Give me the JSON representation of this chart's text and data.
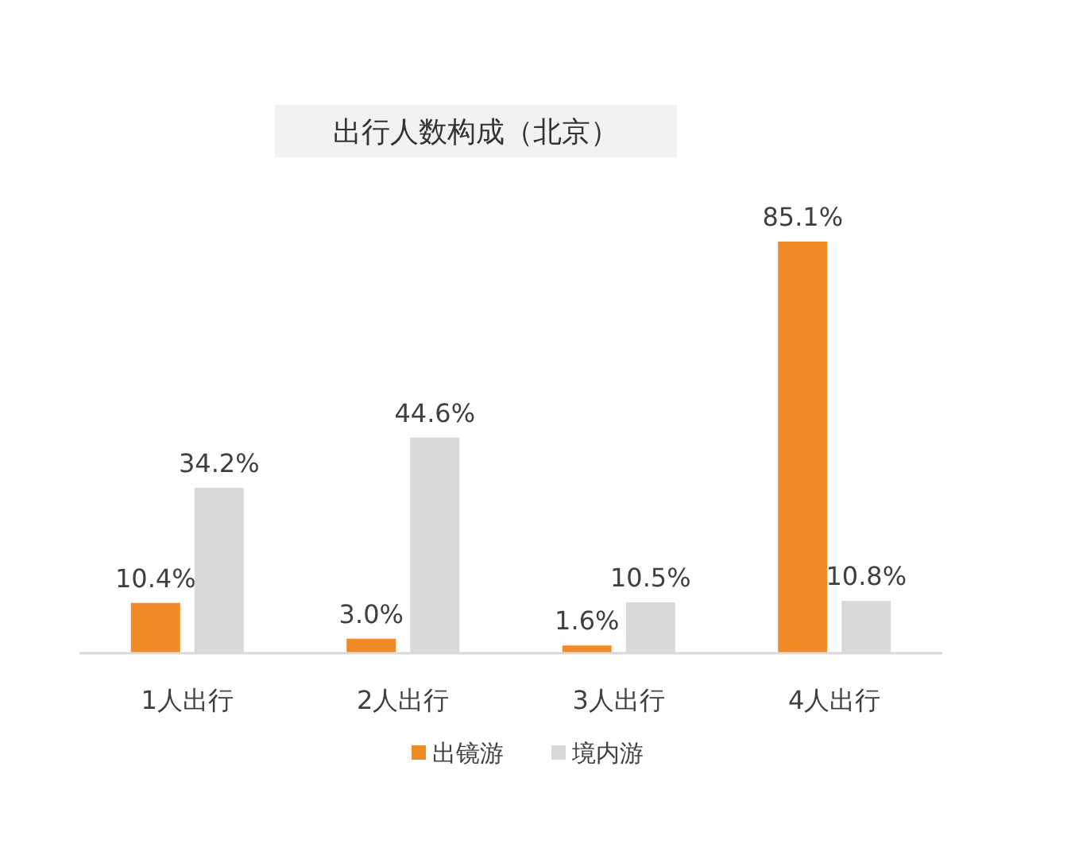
{
  "chart_data": {
    "type": "bar",
    "title": "出行人数构成（北京）",
    "categories": [
      "1人出行",
      "2人出行",
      "3人出行",
      "4人出行"
    ],
    "series": [
      {
        "name": "出镜游",
        "color": "#f08a24",
        "values": [
          10.4,
          3.0,
          1.6,
          85.1
        ],
        "value_labels": [
          "10.4%",
          "3.0%",
          "1.6%",
          "85.1%"
        ]
      },
      {
        "name": "境内游",
        "color": "#d9d9d9",
        "values": [
          34.2,
          44.6,
          10.5,
          10.8
        ],
        "value_labels": [
          "34.2%",
          "44.6%",
          "10.5%",
          "10.8%"
        ]
      }
    ],
    "legend": "bottom"
  }
}
